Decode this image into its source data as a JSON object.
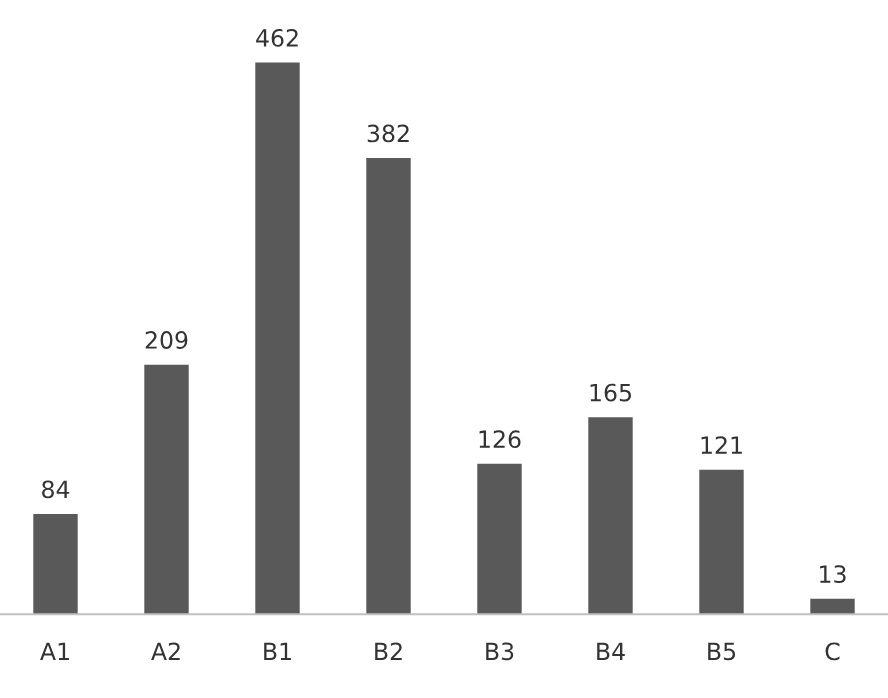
{
  "chart_data": {
    "type": "bar",
    "categories": [
      "A1",
      "A2",
      "B1",
      "B2",
      "B3",
      "B4",
      "B5",
      "C"
    ],
    "values": [
      84,
      209,
      462,
      382,
      126,
      165,
      121,
      13
    ],
    "color": "#595959",
    "data_labels": true,
    "grid": false,
    "legend": false,
    "tick_labels": "x"
  }
}
